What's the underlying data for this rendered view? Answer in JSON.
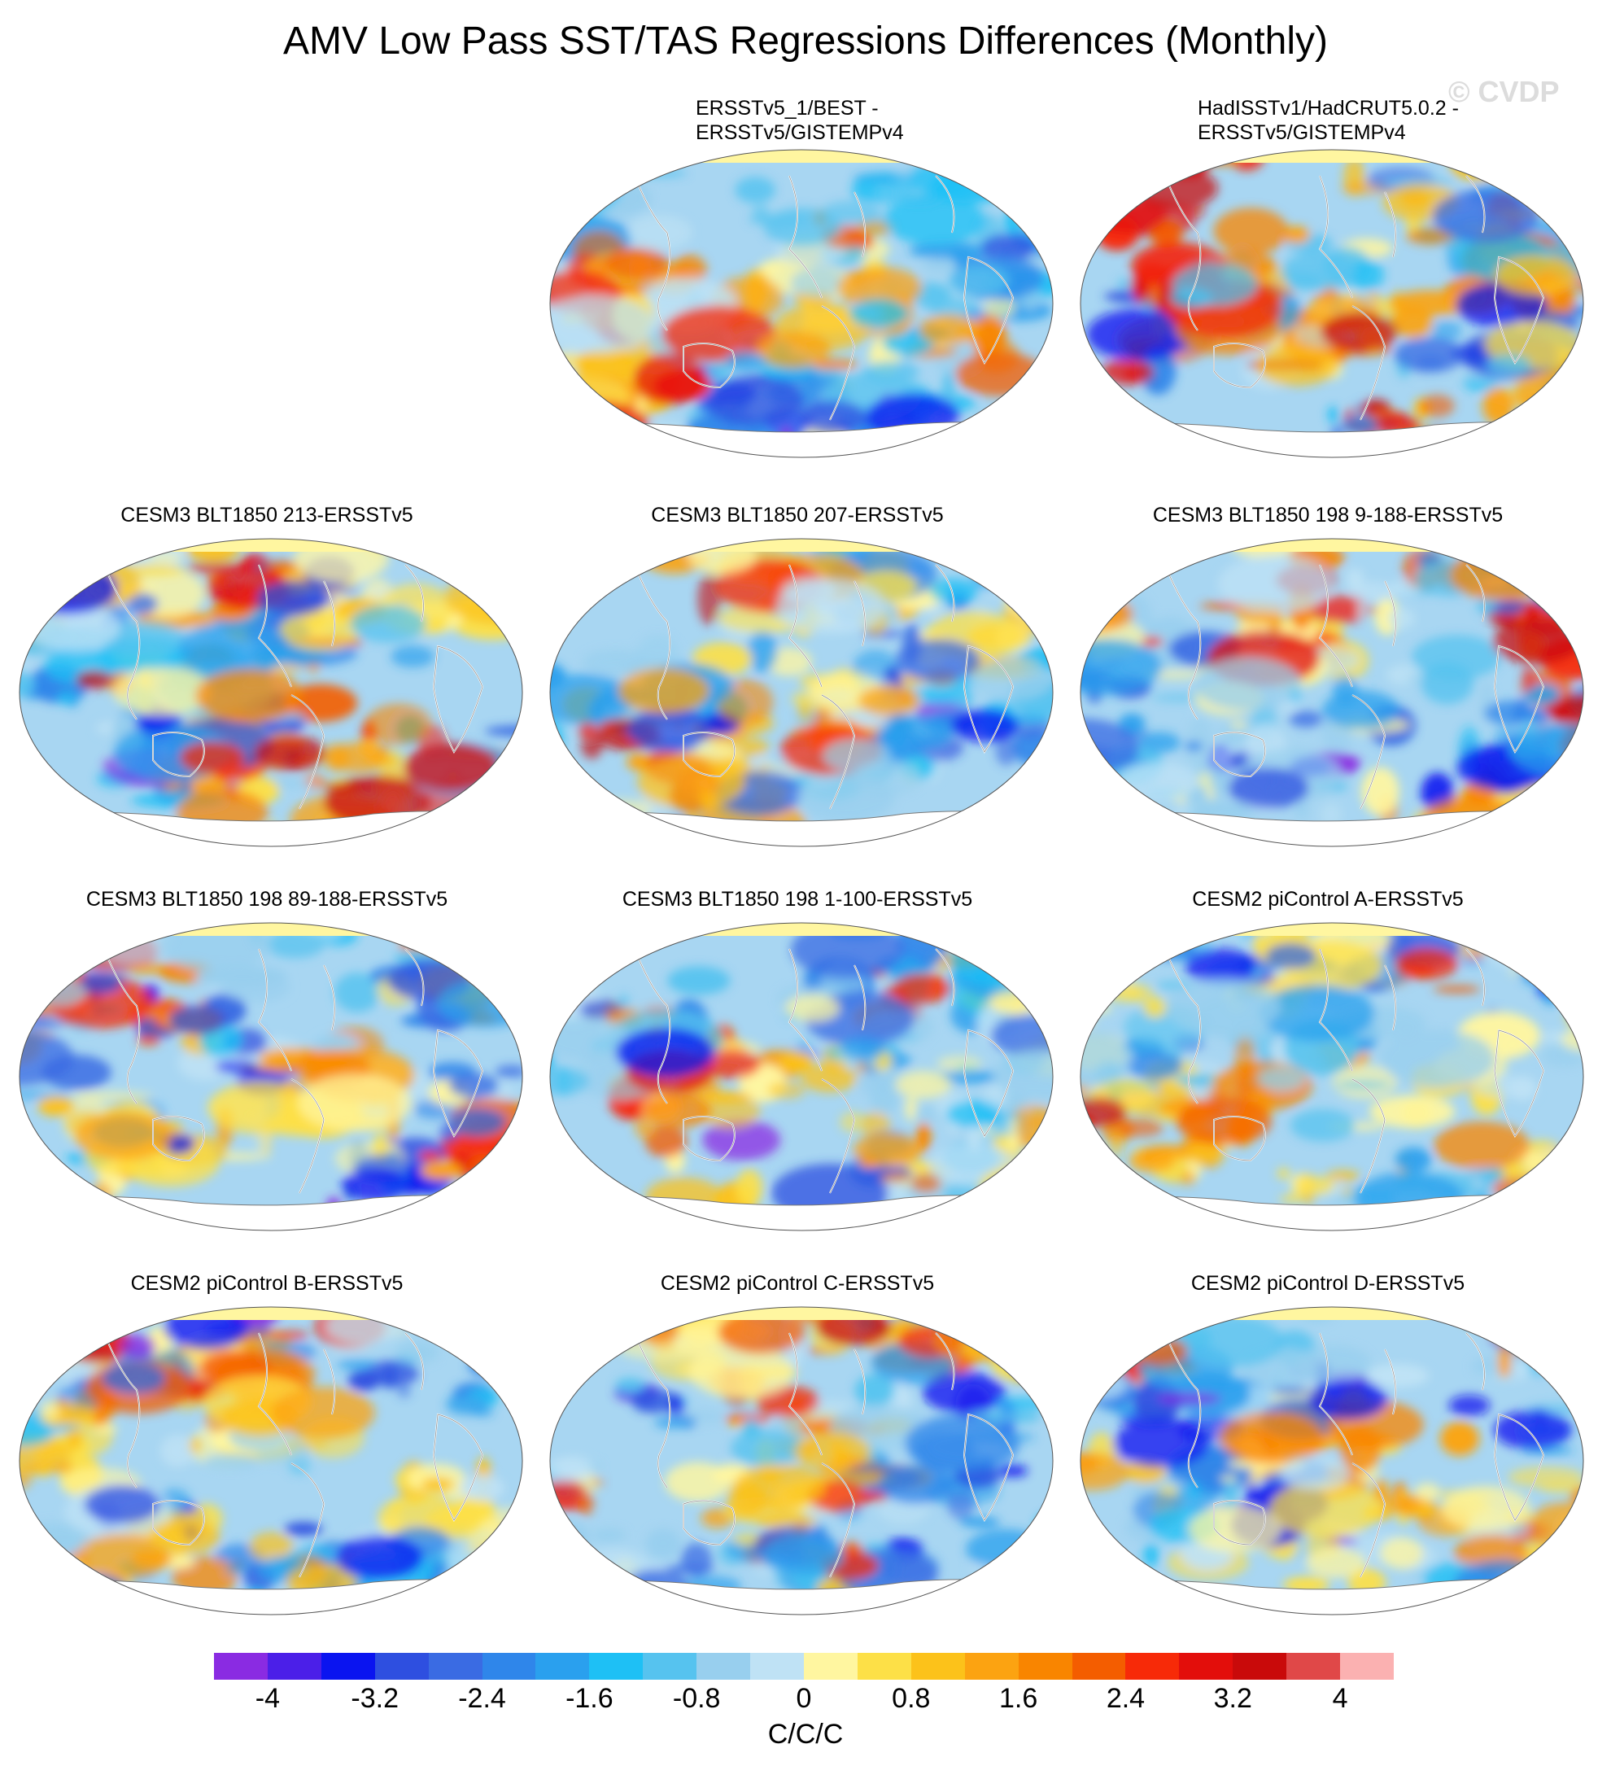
{
  "title": "AMV Low Pass SST/TAS Regressions Differences (Monthly)",
  "watermark": "© CVDP",
  "panels": [
    {
      "title_lines": [
        "ERSSTv5_1/BEST -",
        "ERSSTv5/GISTEMPv4"
      ],
      "seed": 11
    },
    {
      "title_lines": [
        "HadISSTv1/HadCRUT5.0.2 -",
        "ERSSTv5/GISTEMPv4"
      ],
      "seed": 23
    },
    {
      "title_lines": [
        "CESM3 BLT1850 213-ERSSTv5"
      ],
      "seed": 37
    },
    {
      "title_lines": [
        "CESM3 BLT1850 207-ERSSTv5"
      ],
      "seed": 41
    },
    {
      "title_lines": [
        "CESM3 BLT1850 198 9-188-ERSSTv5"
      ],
      "seed": 53
    },
    {
      "title_lines": [
        "CESM3 BLT1850 198 89-188-ERSSTv5"
      ],
      "seed": 67
    },
    {
      "title_lines": [
        "CESM3 BLT1850 198 1-100-ERSSTv5"
      ],
      "seed": 71
    },
    {
      "title_lines": [
        "CESM2 piControl A-ERSSTv5"
      ],
      "seed": 83
    },
    {
      "title_lines": [
        "CESM2 piControl B-ERSSTv5"
      ],
      "seed": 97
    },
    {
      "title_lines": [
        "CESM2 piControl C-ERSSTv5"
      ],
      "seed": 101
    },
    {
      "title_lines": [
        "CESM2 piControl D-ERSSTv5"
      ],
      "seed": 113
    }
  ],
  "colorbar": {
    "colors": [
      "#8a2be2",
      "#4b1fe8",
      "#0a14f0",
      "#2e4fe0",
      "#3a6be3",
      "#2f86ea",
      "#2aa0ee",
      "#1ec0f5",
      "#56c3ef",
      "#98cfee",
      "#bfe2f5",
      "#fff6a0",
      "#fde047",
      "#fcc21a",
      "#fca311",
      "#f98500",
      "#f45d00",
      "#f72a08",
      "#e30e0b",
      "#c90a0a",
      "#e04848",
      "#fbb1b1"
    ],
    "ticks": [
      "-4",
      "-3.2",
      "-2.4",
      "-1.6",
      "-0.8",
      "0",
      "0.8",
      "1.6",
      "2.4",
      "3.2",
      "4"
    ],
    "units": "C/C/C"
  }
}
